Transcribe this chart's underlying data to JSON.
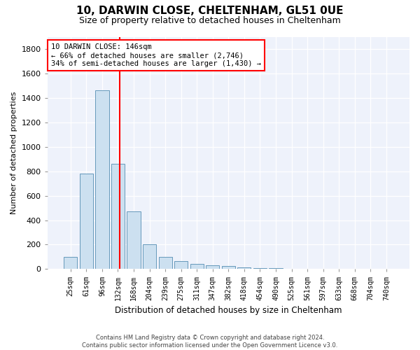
{
  "title1": "10, DARWIN CLOSE, CHELTENHAM, GL51 0UE",
  "title2": "Size of property relative to detached houses in Cheltenham",
  "xlabel": "Distribution of detached houses by size in Cheltenham",
  "ylabel": "Number of detached properties",
  "categories": [
    "25sqm",
    "61sqm",
    "96sqm",
    "132sqm",
    "168sqm",
    "204sqm",
    "239sqm",
    "275sqm",
    "311sqm",
    "347sqm",
    "382sqm",
    "418sqm",
    "454sqm",
    "490sqm",
    "525sqm",
    "561sqm",
    "597sqm",
    "633sqm",
    "668sqm",
    "704sqm",
    "740sqm"
  ],
  "values": [
    100,
    780,
    1460,
    860,
    470,
    200,
    100,
    65,
    40,
    30,
    25,
    15,
    10,
    8,
    5,
    4,
    3,
    2,
    2,
    1,
    1
  ],
  "bar_color": "#cce0f0",
  "bar_edge_color": "#6699bb",
  "red_line_x": 3.1,
  "annotation_text": "10 DARWIN CLOSE: 146sqm\n← 66% of detached houses are smaller (2,746)\n34% of semi-detached houses are larger (1,430) →",
  "ylim": [
    0,
    1900
  ],
  "yticks": [
    0,
    200,
    400,
    600,
    800,
    1000,
    1200,
    1400,
    1600,
    1800
  ],
  "background_color": "#ffffff",
  "plot_bg_color": "#eef2fb",
  "footer": "Contains HM Land Registry data © Crown copyright and database right 2024.\nContains public sector information licensed under the Open Government Licence v3.0."
}
